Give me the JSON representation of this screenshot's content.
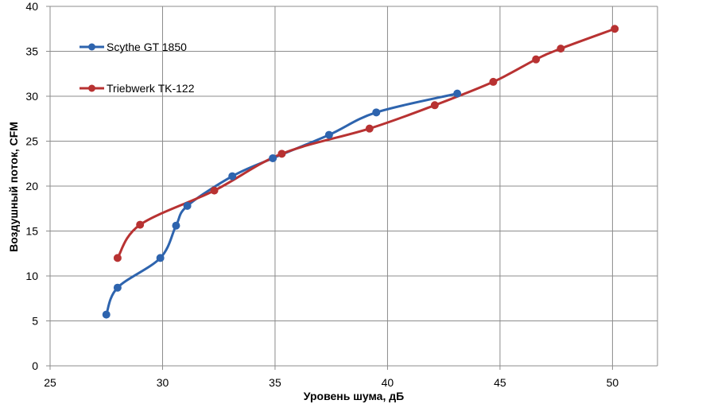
{
  "chart_data": {
    "type": "line",
    "title": "",
    "xlabel": "Уровень шума, дБ",
    "ylabel": "Воздушный поток, CFM",
    "xlim": [
      25,
      52
    ],
    "ylim": [
      0,
      40
    ],
    "x_ticks": [
      25,
      30,
      35,
      40,
      45,
      50
    ],
    "y_ticks": [
      0,
      5,
      10,
      15,
      20,
      25,
      30,
      35,
      40
    ],
    "grid": true,
    "smooth": true,
    "legend_position": "top-left",
    "series": [
      {
        "name": "Scythe GT 1850",
        "color": "#2e64ae",
        "x": [
          27.5,
          28.0,
          29.9,
          30.6,
          31.1,
          33.1,
          34.9,
          37.4,
          39.5,
          43.1
        ],
        "y": [
          5.7,
          8.7,
          12.0,
          15.6,
          17.8,
          21.1,
          23.1,
          25.7,
          28.2,
          30.3
        ]
      },
      {
        "name": "Triebwerk TK-122",
        "color": "#b83232",
        "x": [
          28.0,
          29.0,
          32.3,
          35.3,
          39.2,
          42.1,
          44.7,
          46.6,
          47.7,
          50.1
        ],
        "y": [
          12.0,
          15.7,
          19.5,
          23.6,
          26.4,
          29.0,
          31.6,
          34.1,
          35.3,
          37.5
        ]
      }
    ]
  }
}
